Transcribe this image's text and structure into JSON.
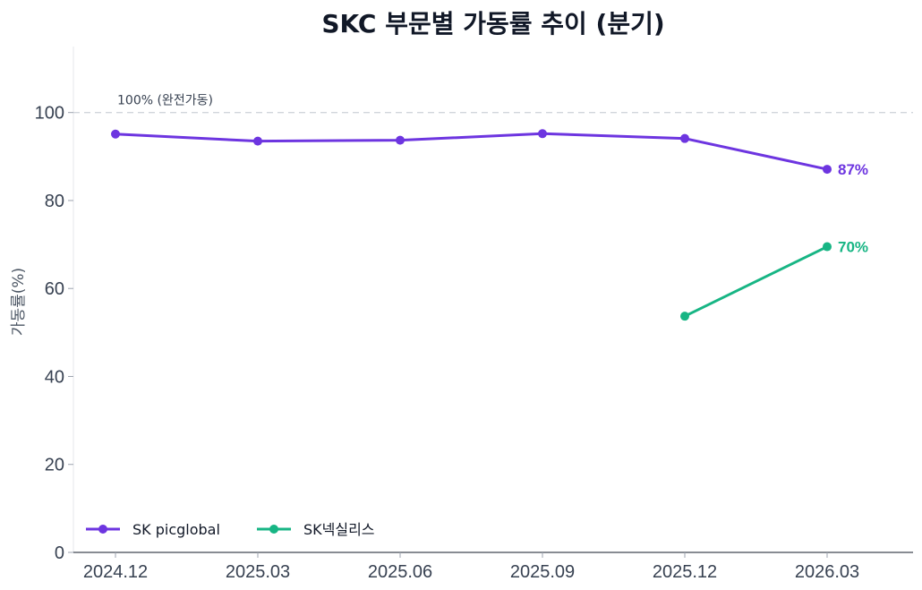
{
  "chart_data": {
    "type": "line",
    "title": "SKC 부문별 가동률 추이 (분기)",
    "xlabel": "",
    "ylabel": "가동률(%)",
    "categories": [
      "2024.12",
      "2025.03",
      "2025.06",
      "2025.09",
      "2025.12",
      "2026.03"
    ],
    "ylim": [
      0,
      115
    ],
    "yticks": [
      0,
      20,
      40,
      60,
      80,
      100
    ],
    "grid": false,
    "legend_position": "bottom-left",
    "reference_line": {
      "value": 100,
      "label": "100% (완전가동)"
    },
    "series": [
      {
        "name": "SK picglobal",
        "color": "#6d35e0",
        "values": [
          95.1,
          93.5,
          93.7,
          95.2,
          94.1,
          87.1
        ],
        "end_label": "87%"
      },
      {
        "name": "SK넥실리스",
        "color": "#17b584",
        "values": [
          null,
          null,
          null,
          null,
          53.7,
          69.5
        ],
        "end_label": "70%"
      }
    ]
  }
}
